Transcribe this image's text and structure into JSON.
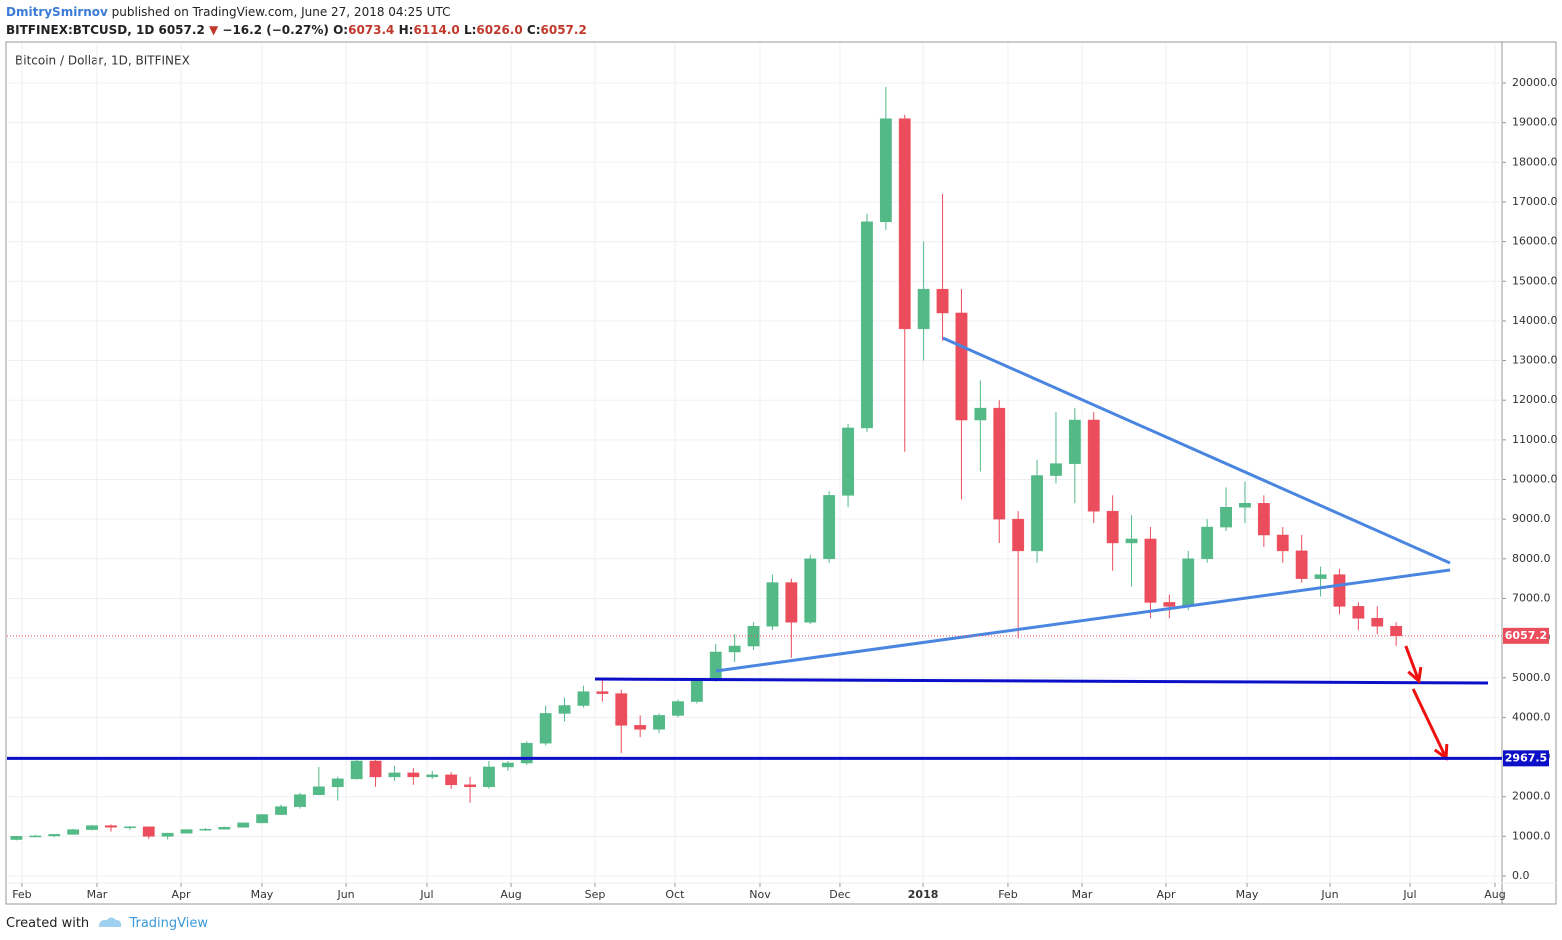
{
  "header": {
    "author": "DmitrySmirnov",
    "published": "published on TradingView.com, June 27, 2018 04:25 UTC",
    "symbol": "BITFINEX:BTCUSD, 1D",
    "last": "6057.2",
    "arrow": "▼",
    "change": "−16.2 (−0.27%)",
    "o_label": "O:",
    "o": "6073.4",
    "h_label": "H:",
    "h": "6114.0",
    "l_label": "L:",
    "l": "6026.0",
    "c_label": "C:",
    "c": "6057.2"
  },
  "chart_data": {
    "type": "candlestick",
    "title": "Bitcoin / Dollar, 1D, BITFINEX",
    "categories": [
      null,
      null,
      null,
      null,
      null,
      null,
      null,
      null,
      null,
      null,
      null,
      null,
      null,
      null,
      null,
      null,
      null,
      null,
      null,
      null,
      null,
      null,
      null,
      null,
      null,
      null,
      null,
      null,
      null,
      null,
      null,
      null,
      null,
      null,
      null,
      null,
      null,
      null,
      null,
      null,
      null,
      null,
      null,
      null,
      null,
      null,
      null,
      null,
      null,
      null,
      null,
      null,
      null,
      null,
      null,
      null,
      null,
      null,
      null,
      null,
      null,
      null,
      null,
      null,
      null,
      null,
      null,
      null,
      null,
      null,
      null,
      null,
      null,
      null
    ],
    "open": [
      920,
      1000,
      1010,
      1050,
      1170,
      1270,
      1230,
      1240,
      1000,
      1080,
      1170,
      1180,
      1230,
      1340,
      1550,
      1750,
      2050,
      2250,
      2450,
      2900,
      2500,
      2600,
      2500,
      2550,
      2300,
      2250,
      2750,
      2850,
      3350,
      4100,
      4300,
      4650,
      4600,
      3800,
      3700,
      4050,
      4400,
      4950,
      5650,
      5800,
      6300,
      7400,
      6400,
      8000,
      9600,
      11300,
      16500,
      19100,
      13800,
      14800,
      14200,
      11500,
      11800,
      9000,
      8200,
      10100,
      10400,
      11500,
      9200,
      8400,
      8500,
      6900,
      6800,
      8000,
      8800,
      9300,
      9400,
      8600,
      8200,
      7500,
      7600,
      6800,
      6500,
      6300
    ],
    "high": [
      1010,
      1040,
      1060,
      1190,
      1290,
      1300,
      1260,
      1250,
      1090,
      1180,
      1210,
      1250,
      1350,
      1560,
      1800,
      2100,
      2750,
      2500,
      2980,
      3000,
      2780,
      2720,
      2650,
      2620,
      2500,
      2900,
      2900,
      3400,
      4300,
      4500,
      4800,
      4980,
      4700,
      4050,
      4100,
      4450,
      5000,
      5850,
      6100,
      6400,
      7600,
      7500,
      8100,
      9700,
      11400,
      16700,
      19900,
      19200,
      16000,
      17200,
      14800,
      12500,
      12000,
      9200,
      10500,
      11700,
      11800,
      11700,
      9600,
      9100,
      8800,
      7100,
      8200,
      9000,
      9800,
      9950,
      9600,
      8800,
      8600,
      7800,
      7750,
      6900,
      6800,
      6400
    ],
    "low": [
      900,
      990,
      980,
      1040,
      1150,
      1120,
      1160,
      940,
      920,
      1070,
      1140,
      1170,
      1220,
      1330,
      1540,
      1700,
      2040,
      1900,
      2430,
      2250,
      2400,
      2300,
      2450,
      2200,
      1850,
      2200,
      2650,
      2800,
      3300,
      3900,
      4250,
      4400,
      3100,
      3500,
      3600,
      4000,
      4350,
      4900,
      5400,
      5700,
      6200,
      5500,
      6350,
      7900,
      9300,
      11200,
      16300,
      10700,
      13000,
      13500,
      9500,
      10200,
      8400,
      6000,
      7900,
      9900,
      9400,
      8900,
      7700,
      7300,
      6500,
      6500,
      6700,
      7900,
      8700,
      8900,
      8300,
      7900,
      7400,
      7050,
      6600,
      6200,
      6100,
      5800
    ],
    "close": [
      1000,
      1010,
      1050,
      1170,
      1270,
      1230,
      1240,
      1000,
      1080,
      1170,
      1180,
      1230,
      1340,
      1550,
      1750,
      2050,
      2250,
      2450,
      2900,
      2500,
      2600,
      2500,
      2550,
      2300,
      2250,
      2750,
      2850,
      3350,
      4100,
      4300,
      4650,
      4600,
      3800,
      3700,
      4050,
      4400,
      4950,
      5650,
      5800,
      6300,
      7400,
      6400,
      8000,
      9600,
      11300,
      16500,
      19100,
      13800,
      14800,
      14200,
      11500,
      11800,
      9000,
      8200,
      10100,
      10400,
      11500,
      9200,
      8400,
      8500,
      6900,
      6800,
      8000,
      8800,
      9300,
      9400,
      8600,
      8200,
      7500,
      7600,
      6800,
      6500,
      6300,
      6057.2
    ],
    "up_color": "#53b987",
    "down_color": "#eb4d5c",
    "xlim": [
      0,
      79.1
    ],
    "xticks": [
      {
        "value": 0.79,
        "label": "Feb"
      },
      {
        "value": 4.76,
        "label": "Mar"
      },
      {
        "value": 9.21,
        "label": "Apr"
      },
      {
        "value": 13.49,
        "label": "May"
      },
      {
        "value": 17.94,
        "label": "Jun"
      },
      {
        "value": 22.22,
        "label": "Jul"
      },
      {
        "value": 26.67,
        "label": "Aug"
      },
      {
        "value": 31.11,
        "label": "Sep"
      },
      {
        "value": 35.34,
        "label": "Oct"
      },
      {
        "value": 39.84,
        "label": "Nov"
      },
      {
        "value": 44.07,
        "label": "Dec"
      },
      {
        "value": 48.47,
        "label": "2018"
      },
      {
        "value": 52.96,
        "label": "Feb"
      },
      {
        "value": 56.88,
        "label": "Mar"
      },
      {
        "value": 61.32,
        "label": "Apr"
      },
      {
        "value": 65.61,
        "label": "May"
      },
      {
        "value": 70.0,
        "label": "Jun"
      },
      {
        "value": 74.23,
        "label": "Jul"
      },
      {
        "value": 78.73,
        "label": "Aug"
      }
    ],
    "ylim": [
      -681,
      21009
    ],
    "yticks": [
      {
        "value": 0,
        "label": "0.0"
      },
      {
        "value": 1000,
        "label": "1000.0"
      },
      {
        "value": 2000,
        "label": "2000.0"
      },
      {
        "value": 3000,
        "label": "3000.0"
      },
      {
        "value": 4000,
        "label": "4000.0"
      },
      {
        "value": 5000,
        "label": "5000.0"
      },
      {
        "value": 6000,
        "label": "6000.0"
      },
      {
        "value": 7000,
        "label": "7000.0"
      },
      {
        "value": 8000,
        "label": "8000.0"
      },
      {
        "value": 9000,
        "label": "9000.0"
      },
      {
        "value": 10000,
        "label": "10000.0"
      },
      {
        "value": 11000,
        "label": "11000.0"
      },
      {
        "value": 12000,
        "label": "12000.0"
      },
      {
        "value": 13000,
        "label": "13000.0"
      },
      {
        "value": 14000,
        "label": "14000.0"
      },
      {
        "value": 15000,
        "label": "15000.0"
      },
      {
        "value": 16000,
        "label": "16000.0"
      },
      {
        "value": 17000,
        "label": "17000.0"
      },
      {
        "value": 18000,
        "label": "18000.0"
      },
      {
        "value": 19000,
        "label": "19000.0"
      },
      {
        "value": 20000,
        "label": "20000.0"
      }
    ],
    "grid": true,
    "price_line": {
      "value": 6057.2,
      "color": "#eb4d5c"
    },
    "level_line": {
      "value": 2967.5,
      "color": "#0b10c8"
    },
    "trend_lines": [
      {
        "x": [
          49.52,
          76.35
        ],
        "y": [
          13569,
          7894
        ],
        "color": "#4a86e0"
      },
      {
        "x": [
          37.51,
          76.35
        ],
        "y": [
          5170,
          7718
        ],
        "color": "#4a86e0"
      },
      {
        "x": [
          31.11,
          78.36
        ],
        "y": [
          4968,
          4868
        ],
        "color": "#0b10c8"
      }
    ],
    "arrows": [
      {
        "x": [
          74.01,
          74.7
        ],
        "y": [
          5802,
          4919
        ],
        "color": "#f01010"
      },
      {
        "x": [
          74.4,
          76.14
        ],
        "y": [
          4717,
          2976
        ],
        "color": "#f01010"
      }
    ]
  },
  "footer": {
    "created": "Created with",
    "brand": "TradingView"
  }
}
